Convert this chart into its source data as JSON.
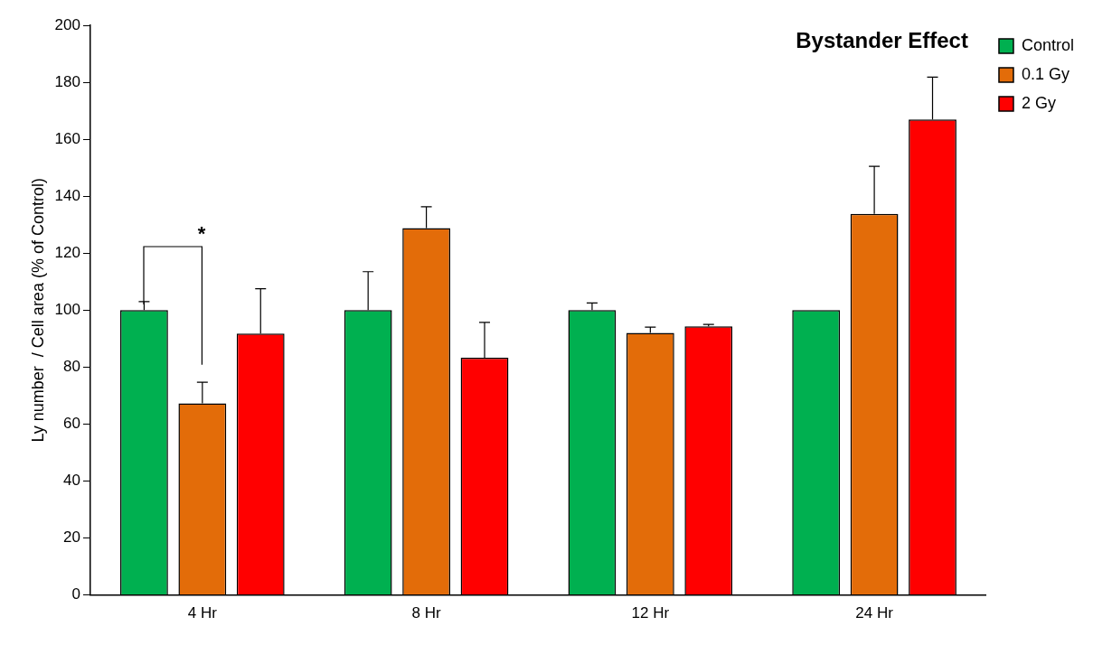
{
  "chart_data": {
    "type": "bar",
    "title": "Bystander Effect",
    "ylabel": "Ly number  / Cell area (% of Control)",
    "categories": [
      "4 Hr",
      "8 Hr",
      "12 Hr",
      "24 Hr"
    ],
    "series": [
      {
        "name": "Control",
        "color": "#00b050",
        "values": [
          100,
          100,
          100,
          100
        ],
        "errors": [
          [
            100,
            103
          ],
          [
            100,
            113.5
          ],
          [
            100,
            102.5
          ],
          null
        ]
      },
      {
        "name": "0.1 Gy",
        "color": "#e36c09",
        "values": [
          67.3,
          128.8,
          92,
          133.8
        ],
        "errors": [
          [
            67.3,
            74.7
          ],
          [
            128.8,
            136.3
          ],
          [
            92,
            94
          ],
          [
            133.8,
            150.5
          ]
        ]
      },
      {
        "name": "2 Gy",
        "color": "#ff0000",
        "values": [
          91.8,
          83.3,
          94.3,
          166.9
        ],
        "errors": [
          [
            91.8,
            107.5
          ],
          [
            83.3,
            95.7
          ],
          [
            94.3,
            95
          ],
          [
            166.9,
            181.8
          ]
        ]
      }
    ],
    "ylim": [
      0,
      200
    ],
    "yticks": [
      0,
      20,
      40,
      60,
      80,
      100,
      120,
      140,
      160,
      180,
      200
    ],
    "grid": false,
    "legend": "top right",
    "annotations": [
      "*"
    ]
  }
}
